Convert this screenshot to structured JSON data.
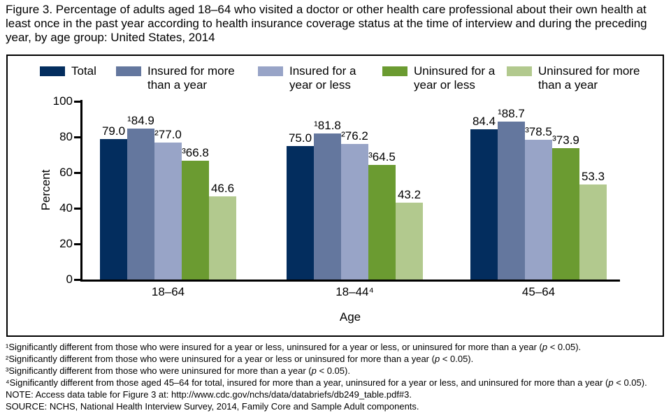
{
  "title": "Figure 3. Percentage of adults aged 18–64 who visited a doctor or other health care professional about their own health at least once in the past year according to health insurance coverage status at the time of interview and during the preceding year, by age group: United States, 2014",
  "chart_data": {
    "type": "bar",
    "title": "",
    "xlabel": "Age",
    "ylabel": "Percent",
    "ylim": [
      0,
      100
    ],
    "yticks": [
      0,
      20,
      40,
      60,
      80,
      100
    ],
    "grid": false,
    "legend_position": "top",
    "categories": [
      "18–64",
      "18–44⁴",
      "45–64"
    ],
    "series": [
      {
        "name": "Total",
        "legend_label": "Total",
        "color": "#032d5e",
        "values": [
          79.0,
          75.0,
          84.4
        ],
        "value_labels": [
          "79.0",
          "75.0",
          "84.4"
        ]
      },
      {
        "name": "Insured for more than a year",
        "legend_label": "Insured for more\nthan a year",
        "color": "#64779e",
        "values": [
          84.9,
          81.8,
          88.7
        ],
        "value_labels": [
          "¹84.9",
          "¹81.8",
          "¹88.7"
        ]
      },
      {
        "name": "Insured for a year or less",
        "legend_label": "Insured for a\nyear or less",
        "color": "#98a4c7",
        "values": [
          77.0,
          76.2,
          78.5
        ],
        "value_labels": [
          "²77.0",
          "²76.2",
          "³78.5"
        ]
      },
      {
        "name": "Uninsured for a year or less",
        "legend_label": "Uninsured for a\nyear or less",
        "color": "#6b9b31",
        "values": [
          66.8,
          64.5,
          73.9
        ],
        "value_labels": [
          "³66.8",
          "³64.5",
          "³73.9"
        ]
      },
      {
        "name": "Uninsured for more than a year",
        "legend_label": "Uninsured for more\nthan a year",
        "color": "#b2c98e",
        "values": [
          46.6,
          43.2,
          53.3
        ],
        "value_labels": [
          "46.6",
          "43.2",
          "53.3"
        ]
      }
    ]
  },
  "footnotes": [
    {
      "pre": "¹Significantly different from those who were insured for a year or less, uninsured for a year or less, or uninsured for more than a year (",
      "it": "p",
      "post": " < 0.05)."
    },
    {
      "pre": "²Significantly different from those who were uninsured for a year or less or uninsured for more than a year (",
      "it": "p",
      "post": " < 0.05)."
    },
    {
      "pre": "³Significantly different from those who were uninsured for more than a year (",
      "it": "p",
      "post": " < 0.05)."
    },
    {
      "pre": "⁴Significantly different from those aged 45–64 for total, insured for more than a year, uninsured for a year or less, and uninsured for more than a year (",
      "it": "p",
      "post": " < 0.05)."
    },
    {
      "pre": "NOTE: Access data table for Figure 3 at: http://www.cdc.gov/nchs/data/databriefs/db249_table.pdf#3.",
      "it": "",
      "post": ""
    },
    {
      "pre": "SOURCE: NCHS, National Health Interview Survey, 2014, Family Core and Sample Adult components.",
      "it": "",
      "post": ""
    }
  ]
}
